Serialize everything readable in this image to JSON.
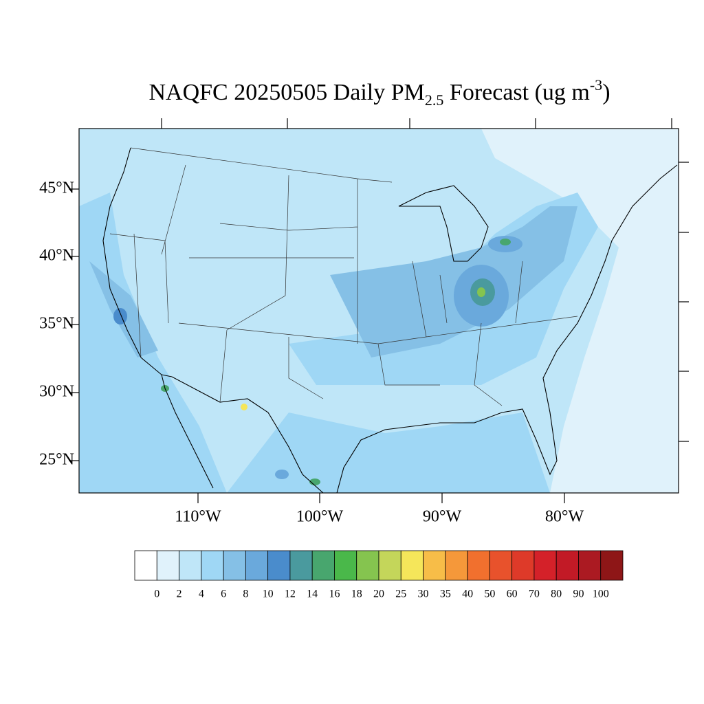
{
  "title": {
    "main": "NAQFC 20250505 Daily PM",
    "subscript": "2.5",
    "middle": " Forecast (ug m",
    "superscript": "-3",
    "end": ")"
  },
  "map": {
    "lat_labels": [
      "45°N",
      "40°N",
      "35°N",
      "30°N",
      "25°N"
    ],
    "lon_labels": [
      "110°W",
      "100°W",
      "90°W",
      "80°W"
    ]
  },
  "colorbar": {
    "levels": [
      0,
      2,
      4,
      6,
      8,
      10,
      12,
      14,
      16,
      18,
      20,
      25,
      30,
      35,
      40,
      50,
      60,
      70,
      80,
      90,
      100
    ],
    "colors": [
      "#ffffff",
      "#e0f2fb",
      "#bfe6f8",
      "#9fd7f5",
      "#85c0e6",
      "#6aa9dc",
      "#4a8ccc",
      "#4a9a9e",
      "#48a66e",
      "#4ab84a",
      "#85c44f",
      "#c4d65a",
      "#f5e65a",
      "#f7bd48",
      "#f5983a",
      "#f1702e",
      "#e8522c",
      "#de3a29",
      "#d42129",
      "#c21a26",
      "#ab1a22",
      "#8e1617"
    ]
  }
}
